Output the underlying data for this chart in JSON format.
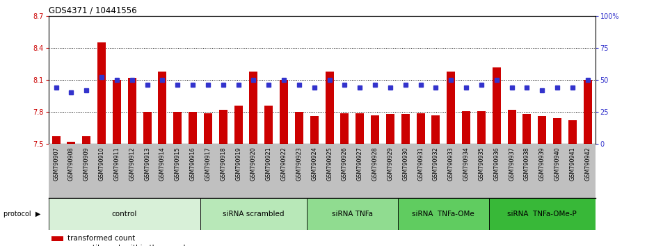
{
  "title": "GDS4371 / 10441556",
  "samples": [
    "GSM790907",
    "GSM790908",
    "GSM790909",
    "GSM790910",
    "GSM790911",
    "GSM790912",
    "GSM790913",
    "GSM790914",
    "GSM790915",
    "GSM790916",
    "GSM790917",
    "GSM790918",
    "GSM790919",
    "GSM790920",
    "GSM790921",
    "GSM790922",
    "GSM790923",
    "GSM790924",
    "GSM790925",
    "GSM790926",
    "GSM790927",
    "GSM790928",
    "GSM790929",
    "GSM790930",
    "GSM790931",
    "GSM790932",
    "GSM790933",
    "GSM790934",
    "GSM790935",
    "GSM790936",
    "GSM790937",
    "GSM790938",
    "GSM790939",
    "GSM790940",
    "GSM790941",
    "GSM790942"
  ],
  "red_values": [
    7.57,
    7.52,
    7.57,
    8.45,
    8.1,
    8.12,
    7.8,
    8.18,
    7.8,
    7.8,
    7.79,
    7.82,
    7.86,
    8.18,
    7.86,
    8.1,
    7.8,
    7.76,
    8.18,
    7.79,
    7.79,
    7.77,
    7.78,
    7.78,
    7.79,
    7.77,
    8.18,
    7.81,
    7.81,
    8.22,
    7.82,
    7.78,
    7.76,
    7.74,
    7.72,
    8.1
  ],
  "blue_values": [
    44,
    40,
    42,
    52,
    50,
    50,
    46,
    50,
    46,
    46,
    46,
    46,
    46,
    50,
    46,
    50,
    46,
    44,
    50,
    46,
    44,
    46,
    44,
    46,
    46,
    44,
    50,
    44,
    46,
    50,
    44,
    44,
    42,
    44,
    44,
    50
  ],
  "groups": [
    {
      "label": "control",
      "start": 0,
      "end": 10,
      "color": "#d8f0d8"
    },
    {
      "label": "siRNA scrambled",
      "start": 10,
      "end": 17,
      "color": "#b8e8b8"
    },
    {
      "label": "siRNA TNFa",
      "start": 17,
      "end": 23,
      "color": "#90dc90"
    },
    {
      "label": "siRNA  TNFa-OMe",
      "start": 23,
      "end": 29,
      "color": "#60cc60"
    },
    {
      "label": "siRNA  TNFa-OMe-P",
      "start": 29,
      "end": 36,
      "color": "#38b838"
    }
  ],
  "ylim_left": [
    7.5,
    8.7
  ],
  "ylim_right": [
    0,
    100
  ],
  "yticks_left": [
    7.5,
    7.8,
    8.1,
    8.4,
    8.7
  ],
  "yticks_right": [
    0,
    25,
    50,
    75,
    100
  ],
  "grid_lines": [
    7.8,
    8.1,
    8.4
  ],
  "bar_color": "#cc0000",
  "dot_color": "#3333cc",
  "xtick_bg": "#c0c0c0",
  "plot_bg": "#ffffff"
}
